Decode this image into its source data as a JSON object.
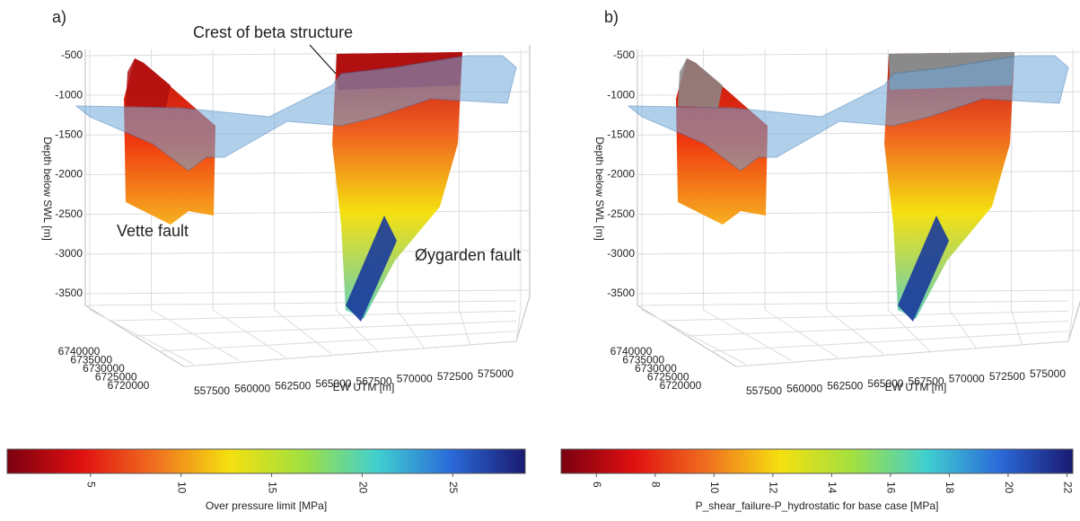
{
  "chart_data": [
    {
      "type": "surface3d",
      "panel_label": "a)",
      "zlabel": "Depth below SWL [m]",
      "xlabel": "EW UTM [m]",
      "zlim": [
        -500,
        -3500
      ],
      "zticks": [
        -500,
        -1000,
        -1500,
        -2000,
        -2500,
        -3000,
        -3500
      ],
      "xlim": [
        557500,
        575000
      ],
      "xticks": [
        557500,
        560000,
        562500,
        565000,
        567500,
        570000,
        572500,
        575000
      ],
      "ylim": [
        6740000,
        6720000
      ],
      "yticks": [
        6740000,
        6735000,
        6730000,
        6725000,
        6720000
      ],
      "annotations": [
        "Crest of beta structure",
        "Vette fault",
        "Øygarden fault"
      ],
      "top_color": "#b01010",
      "colorbar": {
        "label": "Over pressure limit [MPa]",
        "lim": [
          0.4,
          29
        ],
        "ticks": [
          5,
          10,
          15,
          20,
          25
        ],
        "colors": [
          "#7a0010",
          "#e01010",
          "#f07020",
          "#f5e010",
          "#a0e040",
          "#40d0d0",
          "#2a6ad8",
          "#1a1a70"
        ]
      }
    },
    {
      "type": "surface3d",
      "panel_label": "b)",
      "zlabel": "Depth below SWL [m]",
      "xlabel": "EW UTM [m]",
      "zlim": [
        -500,
        -3500
      ],
      "zticks": [
        -500,
        -1000,
        -1500,
        -2000,
        -2500,
        -3000,
        -3500
      ],
      "xlim": [
        557500,
        575000
      ],
      "xticks": [
        557500,
        560000,
        562500,
        565000,
        567500,
        570000,
        572500,
        575000
      ],
      "ylim": [
        6740000,
        6720000
      ],
      "yticks": [
        6740000,
        6735000,
        6730000,
        6725000,
        6720000
      ],
      "annotations": [],
      "top_color": "#8a8a8a",
      "colorbar": {
        "label": "P_shear_failure-P_hydrostatic for base case [MPa]",
        "lim": [
          4.8,
          22.2
        ],
        "ticks": [
          6,
          8,
          10,
          12,
          14,
          16,
          18,
          20,
          22
        ],
        "colors": [
          "#7a0010",
          "#e01010",
          "#f07020",
          "#f5e010",
          "#a0e040",
          "#40d0d0",
          "#2a6ad8",
          "#1a1a70"
        ]
      }
    }
  ]
}
